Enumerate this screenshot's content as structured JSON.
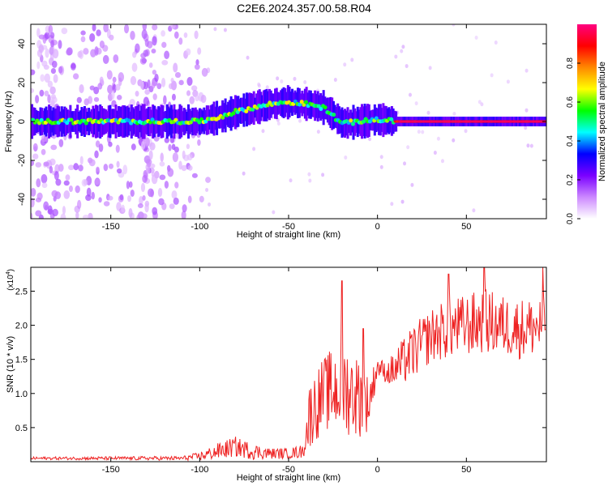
{
  "title": "C2E6.2024.357.00.58.R04",
  "chart_data": [
    {
      "type": "heatmap",
      "title": "C2E6.2024.357.00.58.R04",
      "xlabel": "Height of straight line (km)",
      "ylabel": "Frequency (Hz)",
      "xlim": [
        -195,
        95
      ],
      "ylim": [
        -50,
        50
      ],
      "xticks": [
        -150,
        -100,
        -50,
        0,
        50
      ],
      "yticks": [
        -40,
        -20,
        0,
        20,
        40
      ],
      "colorbar": {
        "label": "Normalized spectral amplitude",
        "range": [
          0,
          1
        ],
        "ticks": [
          "0.0",
          "0.2",
          "0.4",
          "0.6",
          "0.8"
        ],
        "colors": [
          "#ffffff",
          "#cc88ff",
          "#7a00ff",
          "#0000ff",
          "#00ffff",
          "#00ff00",
          "#ffff00",
          "#ff8800",
          "#ff0000",
          "#ff0080"
        ]
      },
      "ridge_center_hz": [
        {
          "x": -195,
          "y": 0
        },
        {
          "x": -150,
          "y": 0
        },
        {
          "x": -110,
          "y": 0
        },
        {
          "x": -100,
          "y": 0
        },
        {
          "x": -90,
          "y": 2
        },
        {
          "x": -80,
          "y": 5
        },
        {
          "x": -70,
          "y": 7
        },
        {
          "x": -60,
          "y": 9
        },
        {
          "x": -50,
          "y": 10
        },
        {
          "x": -40,
          "y": 9
        },
        {
          "x": -30,
          "y": 7
        },
        {
          "x": -25,
          "y": 3
        },
        {
          "x": -20,
          "y": -1
        },
        {
          "x": -10,
          "y": 0
        },
        {
          "x": 0,
          "y": 1
        },
        {
          "x": 10,
          "y": 0
        },
        {
          "x": 95,
          "y": 0
        }
      ]
    },
    {
      "type": "line",
      "xlabel": "Height of straight line (km)",
      "ylabel": "SNR (10 * v/v)",
      "scale_label": "(x10",
      "scale_exponent": "4",
      "xlim": [
        -195,
        95
      ],
      "ylim": [
        0,
        2.85
      ],
      "xticks": [
        -150,
        -100,
        -50,
        0,
        50
      ],
      "yticks": [
        "0.5",
        "1.0",
        "1.5",
        "2.0",
        "2.5"
      ],
      "series": [
        {
          "color": "#ee2222",
          "envelope": [
            {
              "x": -195,
              "base": 0.05,
              "amp": 0.02
            },
            {
              "x": -110,
              "base": 0.05,
              "amp": 0.03
            },
            {
              "x": -100,
              "base": 0.08,
              "amp": 0.06
            },
            {
              "x": -90,
              "base": 0.15,
              "amp": 0.12
            },
            {
              "x": -80,
              "base": 0.22,
              "amp": 0.15
            },
            {
              "x": -70,
              "base": 0.15,
              "amp": 0.12
            },
            {
              "x": -60,
              "base": 0.12,
              "amp": 0.08
            },
            {
              "x": -50,
              "base": 0.12,
              "amp": 0.08
            },
            {
              "x": -42,
              "base": 0.15,
              "amp": 0.1
            },
            {
              "x": -38,
              "base": 0.7,
              "amp": 0.5
            },
            {
              "x": -30,
              "base": 1.0,
              "amp": 0.55
            },
            {
              "x": -20,
              "base": 1.1,
              "amp": 0.7
            },
            {
              "x": -10,
              "base": 0.95,
              "amp": 0.6
            },
            {
              "x": -5,
              "base": 0.85,
              "amp": 0.4
            },
            {
              "x": 0,
              "base": 1.4,
              "amp": 0.15
            },
            {
              "x": 5,
              "base": 1.3,
              "amp": 0.15
            },
            {
              "x": 10,
              "base": 1.35,
              "amp": 0.3
            },
            {
              "x": 20,
              "base": 1.6,
              "amp": 0.4
            },
            {
              "x": 30,
              "base": 1.85,
              "amp": 0.4
            },
            {
              "x": 40,
              "base": 1.95,
              "amp": 0.45
            },
            {
              "x": 50,
              "base": 2.0,
              "amp": 0.45
            },
            {
              "x": 60,
              "base": 2.05,
              "amp": 0.5
            },
            {
              "x": 70,
              "base": 2.0,
              "amp": 0.45
            },
            {
              "x": 80,
              "base": 1.95,
              "amp": 0.45
            },
            {
              "x": 95,
              "base": 2.0,
              "amp": 0.45
            }
          ],
          "peaks": [
            {
              "x": -20,
              "y": 2.65
            },
            {
              "x": 60,
              "y": 2.85
            },
            {
              "x": 93,
              "y": 2.85
            },
            {
              "x": 40,
              "y": 2.75
            },
            {
              "x": -8,
              "y": 1.95
            }
          ]
        }
      ]
    }
  ]
}
